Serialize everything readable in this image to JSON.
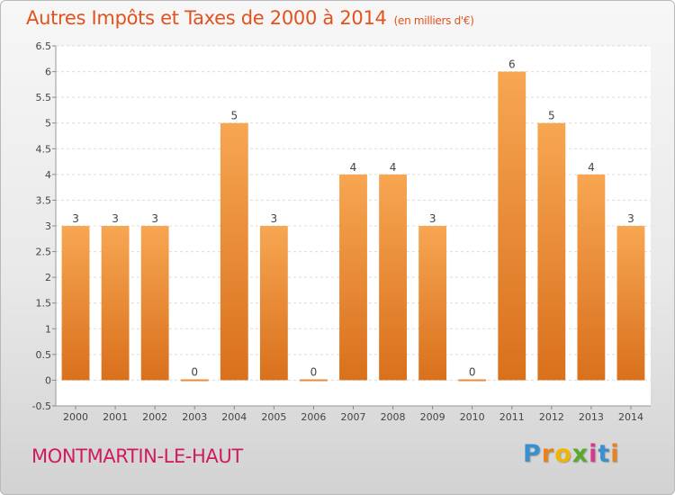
{
  "header": {
    "title": "Autres Impôts et Taxes de 2000 à 2014",
    "unit": "(en milliers d'€)"
  },
  "footer": {
    "commune": "MONTMARTIN-LE-HAUT",
    "logo": [
      "P",
      "r",
      "o",
      "x",
      "i",
      "t",
      "i"
    ]
  },
  "colors": {
    "title": "#e3521d",
    "commune": "#cf1b5f",
    "bar_light": "#f7a652",
    "bar_dark": "#d9701c",
    "logo": [
      "#3a8fcf",
      "#e8821e",
      "#f0b600",
      "#59a92c",
      "#d63a8c",
      "#3a8fcf",
      "#e8821e"
    ]
  },
  "chart_data": {
    "type": "bar",
    "title": "Autres Impôts et Taxes de 2000 à 2014",
    "categories": [
      "2000",
      "2001",
      "2002",
      "2003",
      "2004",
      "2005",
      "2006",
      "2007",
      "2008",
      "2009",
      "2010",
      "2011",
      "2012",
      "2013",
      "2014"
    ],
    "values": [
      3,
      3,
      3,
      0,
      5,
      3,
      0,
      4,
      4,
      3,
      0,
      6,
      5,
      4,
      3
    ],
    "ylim": [
      -0.5,
      6.5
    ],
    "yticks": [
      "-0.5",
      "0",
      "0.5",
      "1",
      "1.5",
      "2",
      "2.5",
      "3",
      "3.5",
      "4",
      "4.5",
      "5",
      "5.5",
      "6",
      "6.5"
    ],
    "grid": true,
    "xlabel": "",
    "ylabel": ""
  }
}
